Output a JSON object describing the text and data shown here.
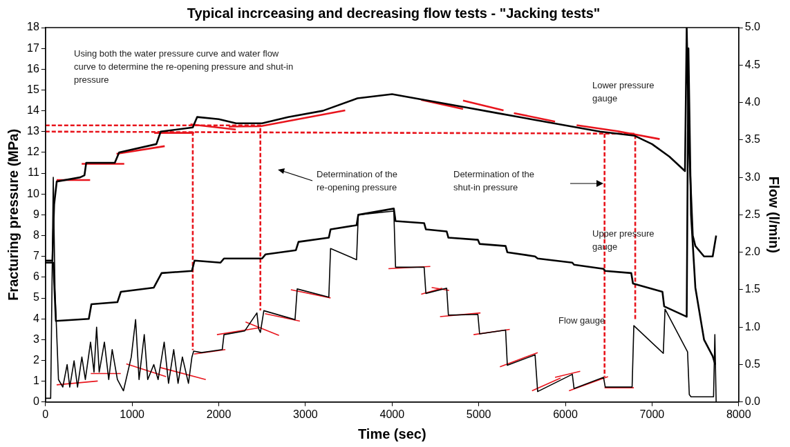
{
  "chart_data": {
    "type": "line",
    "title": "Typical incrceasing and decreasing flow tests - \"Jacking tests\"",
    "xlabel": "Time (sec)",
    "ylabel": "Fracturing pressure (MPa)",
    "y2label": "Flow (l/min)",
    "xlim": [
      0,
      8000
    ],
    "xticks": [
      0,
      1000,
      2000,
      3000,
      4000,
      5000,
      6000,
      7000,
      8000
    ],
    "ylim": [
      0,
      18
    ],
    "yticks": [
      0,
      1,
      2,
      3,
      4,
      5,
      6,
      7,
      8,
      9,
      10,
      11,
      12,
      13,
      14,
      15,
      16,
      17,
      18
    ],
    "y2lim": [
      0,
      5
    ],
    "y2ticks": [
      {
        "value": 0,
        "label": "0.0"
      },
      {
        "value": 0.5,
        "label": "0.5"
      },
      {
        "value": 1,
        "label": "1.0"
      },
      {
        "value": 1.5,
        "label": "1.5"
      },
      {
        "value": 2,
        "label": "2.0"
      },
      {
        "value": 2.5,
        "label": "2.5"
      },
      {
        "value": 3,
        "label": "3.0"
      },
      {
        "value": 3.5,
        "label": "3.5"
      },
      {
        "value": 4,
        "label": "4.0"
      },
      {
        "value": 4.5,
        "label": "4.5"
      },
      {
        "value": 5,
        "label": "5.0"
      }
    ],
    "grid": false,
    "legend": false,
    "marker": "none",
    "series": [
      {
        "color": "#000000",
        "x": [
          0,
          80,
          100,
          130,
          400,
          450,
          470,
          800,
          850,
          1280,
          1330,
          1700,
          1750,
          2000,
          2200,
          2500,
          2800,
          3200,
          3600,
          4000,
          4400,
          4800,
          5200,
          5600,
          6000,
          6400,
          6800,
          7000,
          7200,
          7380,
          7400,
          7430,
          7470,
          7500,
          7600,
          7700,
          7740
        ],
        "values": [
          6.8,
          6.8,
          9.5,
          10.6,
          10.8,
          10.9,
          11.5,
          11.5,
          12.0,
          12.4,
          13.0,
          13.2,
          13.7,
          13.6,
          13.4,
          13.4,
          13.7,
          14.0,
          14.6,
          14.8,
          14.5,
          14.2,
          13.9,
          13.6,
          13.3,
          13.0,
          12.8,
          12.4,
          11.8,
          11.1,
          18,
          12,
          8,
          7.5,
          7.0,
          7.0,
          8.0
        ]
      },
      {
        "color": "#000000",
        "x": [
          0,
          90,
          120,
          500,
          530,
          830,
          870,
          1250,
          1340,
          1690,
          1720,
          2020,
          2060,
          2500,
          2540,
          2890,
          2920,
          3270,
          3290,
          3590,
          3610,
          4020,
          4040,
          4370,
          4390,
          4630,
          4650,
          4990,
          5010,
          5310,
          5330,
          5650,
          5680,
          6080,
          6100,
          6440,
          6460,
          6760,
          6780,
          7120,
          7140,
          7400,
          7420,
          7450,
          7500,
          7600,
          7700,
          7730
        ],
        "values": [
          6.7,
          6.7,
          3.9,
          4.0,
          4.7,
          4.8,
          5.3,
          5.5,
          6.2,
          6.3,
          6.8,
          6.7,
          6.9,
          6.9,
          7.1,
          7.3,
          7.7,
          7.9,
          8.3,
          8.5,
          9.0,
          9.3,
          8.7,
          8.6,
          8.3,
          8.2,
          7.9,
          7.8,
          7.6,
          7.5,
          7.2,
          7.0,
          6.9,
          6.7,
          6.6,
          6.4,
          6.3,
          6.2,
          5.7,
          5.3,
          4.6,
          4.1,
          17,
          9,
          5.5,
          3,
          2.2,
          1.8
        ]
      },
      {
        "color": "#000000",
        "axis": "y2",
        "x": [
          0,
          60,
          90,
          110,
          150,
          200,
          250,
          280,
          330,
          370,
          420,
          460,
          520,
          560,
          590,
          620,
          680,
          730,
          770,
          830,
          900,
          990,
          1040,
          1080,
          1140,
          1180,
          1250,
          1300,
          1370,
          1420,
          1480,
          1530,
          1580,
          1650,
          1690,
          1710,
          1800,
          2040,
          2060,
          2300,
          2440,
          2460,
          2480,
          2520,
          2880,
          2905,
          3270,
          3290,
          3590,
          3610,
          4020,
          4040,
          4370,
          4390,
          4630,
          4650,
          4990,
          5010,
          5310,
          5330,
          5650,
          5680,
          6080,
          6100,
          6440,
          6460,
          6770,
          6790,
          7130,
          7150,
          7410,
          7430,
          7450,
          7710,
          7725,
          7740
        ],
        "values": [
          0.05,
          0.05,
          3.0,
          1.5,
          0.3,
          0.2,
          0.5,
          0.2,
          0.55,
          0.2,
          0.6,
          0.3,
          0.8,
          0.4,
          1.0,
          0.4,
          0.8,
          0.3,
          0.7,
          0.3,
          0.15,
          0.6,
          1.1,
          0.3,
          0.9,
          0.3,
          0.5,
          0.3,
          0.8,
          0.25,
          0.7,
          0.25,
          0.6,
          0.25,
          0.6,
          0.68,
          0.66,
          0.7,
          0.9,
          0.95,
          1.19,
          0.98,
          0.93,
          1.22,
          1.1,
          1.51,
          1.4,
          2.05,
          1.9,
          2.5,
          2.55,
          1.8,
          1.8,
          1.45,
          1.52,
          1.16,
          1.17,
          0.91,
          0.96,
          0.49,
          0.63,
          0.14,
          0.37,
          0.18,
          0.33,
          0.2,
          0.2,
          1.02,
          0.65,
          1.24,
          0.67,
          0.1,
          0.07,
          0.07,
          0.9,
          0.0
        ]
      },
      {
        "color": "#e8141c",
        "x": [
          129,
          515
        ],
        "values": [
          10.67,
          10.67
        ]
      },
      {
        "color": "#e8141c",
        "x": [
          418,
          909
        ],
        "values": [
          11.45,
          11.45
        ]
      },
      {
        "color": "#e8141c",
        "x": [
          820,
          1376
        ],
        "values": [
          11.93,
          12.3
        ]
      },
      {
        "color": "#e8141c",
        "x": [
          1255,
          1714
        ],
        "values": [
          12.94,
          12.94
        ]
      },
      {
        "color": "#e8141c",
        "x": [
          1673,
          2196
        ],
        "values": [
          13.35,
          13.1
        ]
      },
      {
        "color": "#e8141c",
        "x": [
          2116,
          2482,
          3459
        ],
        "values": [
          13.24,
          13.26,
          14.02
        ]
      },
      {
        "color": "#e8141c",
        "x": [
          4336,
          4819
        ],
        "values": [
          14.53,
          14.09
        ]
      },
      {
        "color": "#e8141c",
        "x": [
          4819,
          5286
        ],
        "values": [
          14.49,
          14.02
        ]
      },
      {
        "color": "#e8141c",
        "x": [
          5406,
          5881
        ],
        "values": [
          13.89,
          13.48
        ]
      },
      {
        "color": "#e8141c",
        "x": [
          6130,
          6605,
          7088
        ],
        "values": [
          13.31,
          13.02,
          12.64
        ]
      },
      {
        "color": "#e8141c",
        "axis": "y2",
        "x": [
          129,
          603
        ],
        "values": [
          0.23,
          0.28
        ]
      },
      {
        "color": "#e8141c",
        "axis": "y2",
        "x": [
          523,
          869
        ],
        "values": [
          0.38,
          0.38
        ]
      },
      {
        "color": "#e8141c",
        "axis": "y2",
        "x": [
          933,
          1392
        ],
        "values": [
          0.51,
          0.34
        ]
      },
      {
        "color": "#e8141c",
        "axis": "y2",
        "x": [
          1327,
          1850
        ],
        "values": [
          0.46,
          0.3
        ]
      },
      {
        "color": "#e8141c",
        "axis": "y2",
        "x": [
          1714,
          2076
        ],
        "values": [
          0.64,
          0.7
        ]
      },
      {
        "color": "#e8141c",
        "axis": "y2",
        "x": [
          1979,
          2462
        ],
        "values": [
          0.9,
          0.99
        ]
      },
      {
        "color": "#e8141c",
        "axis": "y2",
        "x": [
          2309,
          2695
        ],
        "values": [
          1.07,
          0.89
        ]
      },
      {
        "color": "#e8141c",
        "axis": "y2",
        "x": [
          2534,
          2936
        ],
        "values": [
          1.18,
          1.08
        ]
      },
      {
        "color": "#e8141c",
        "axis": "y2",
        "x": [
          2832,
          3290
        ],
        "values": [
          1.5,
          1.39
        ]
      },
      {
        "color": "#e8141c",
        "axis": "y2",
        "x": [
          3958,
          4441
        ],
        "values": [
          1.78,
          1.81
        ]
      },
      {
        "color": "#e8141c",
        "axis": "y2",
        "x": [
          4336,
          4578
        ],
        "values": [
          1.44,
          1.52
        ]
      },
      {
        "color": "#e8141c",
        "axis": "y2",
        "x": [
          4457,
          4658
        ],
        "values": [
          1.53,
          1.49
        ]
      },
      {
        "color": "#e8141c",
        "axis": "y2",
        "x": [
          4553,
          5020
        ],
        "values": [
          1.14,
          1.19
        ]
      },
      {
        "color": "#e8141c",
        "axis": "y2",
        "x": [
          4940,
          5358
        ],
        "values": [
          0.9,
          0.97
        ]
      },
      {
        "color": "#e8141c",
        "axis": "y2",
        "x": [
          5245,
          5680
        ],
        "values": [
          0.47,
          0.66
        ]
      },
      {
        "color": "#e8141c",
        "axis": "y2",
        "x": [
          5615,
          5945
        ],
        "values": [
          0.15,
          0.32
        ]
      },
      {
        "color": "#e8141c",
        "axis": "y2",
        "x": [
          5881,
          6171
        ],
        "values": [
          0.33,
          0.41
        ]
      },
      {
        "color": "#e8141c",
        "axis": "y2",
        "x": [
          6042,
          6492
        ],
        "values": [
          0.15,
          0.34
        ]
      },
      {
        "color": "#e8141c",
        "axis": "y2",
        "x": [
          6452,
          6790
        ],
        "values": [
          0.19,
          0.19
        ]
      },
      {
        "color": "#e8141c",
        "line_style": "dashed",
        "x": [
          0,
          6806,
          6806
        ],
        "values": [
          13.0,
          12.9,
          3.9
        ]
      },
      {
        "color": "#e8141c",
        "line_style": "dashed",
        "x": [
          1700,
          1700
        ],
        "values": [
          13.0,
          2.5
        ]
      },
      {
        "color": "#e8141c",
        "line_style": "dashed",
        "x": [
          6452,
          6452
        ],
        "values": [
          12.9,
          1.2
        ]
      },
      {
        "color": "#e8141c",
        "line_style": "dashed",
        "x": [
          0,
          2480,
          2480
        ],
        "values": [
          13.3,
          13.3,
          4.4
        ]
      }
    ],
    "annotations": [
      "Using both the water pressure curve and water flow curve to determine the re-opening pressure and shut-in pressure",
      "Determination of the re-opening pressure",
      "Determination of the shut-in pressure",
      "Lower pressure gauge",
      "Upper pressure gauge",
      "Flow gauge"
    ]
  }
}
